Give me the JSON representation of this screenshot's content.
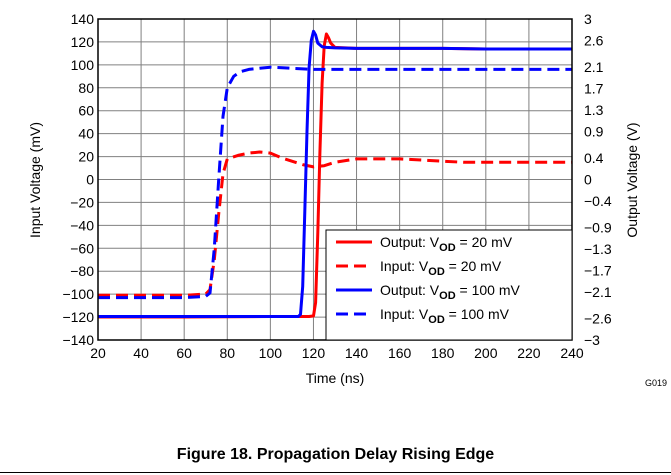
{
  "caption": "Figure 18. Propagation Delay Rising Edge",
  "figure_code": "G019",
  "chart_data": {
    "type": "line",
    "xlabel": "Time (ns)",
    "ylabel": "Input Voltage (mV)",
    "y2label": "Output Voltage (V)",
    "xlim": [
      20,
      240
    ],
    "ylim": [
      -140,
      140
    ],
    "y2lim": [
      -3,
      3
    ],
    "grid": true,
    "legend_position": "bottom-right",
    "x_ticks": [
      20,
      40,
      60,
      80,
      100,
      120,
      140,
      160,
      180,
      200,
      220,
      240
    ],
    "y_ticks": [
      140,
      120,
      100,
      80,
      60,
      40,
      20,
      0,
      -20,
      -40,
      -60,
      -80,
      -100,
      -120,
      -140
    ],
    "y_tick_labels": [
      "140",
      "120",
      "100",
      "80",
      "60",
      "40",
      "20",
      "0",
      "−20",
      "−40",
      "−60",
      "−80",
      "−100",
      "−120",
      "−140"
    ],
    "y2_ticks": [
      3,
      2.6,
      2.1,
      1.7,
      1.3,
      0.9,
      0.4,
      0,
      -0.4,
      -0.9,
      -1.3,
      -1.7,
      -2.1,
      -2.6,
      -3
    ],
    "y2_tick_labels": [
      "3",
      "2.6",
      "2.1",
      "1.7",
      "1.3",
      "0.9",
      "0.4",
      "0",
      "−0.4",
      "−0.9",
      "−1.3",
      "−1.7",
      "−2.1",
      "−2.6",
      "−3"
    ],
    "series": [
      {
        "label_main": "Output: V",
        "label_sub": "OD",
        "label_tail": " = 20 mV",
        "color": "#ff0000",
        "dash": "solid",
        "axis": "right",
        "x": [
          20,
          60,
          100,
          118,
          120,
          121,
          122,
          123,
          124,
          125,
          126,
          127,
          128,
          130,
          135,
          140,
          160,
          180,
          200,
          220,
          240
        ],
        "y": [
          -2.57,
          -2.57,
          -2.56,
          -2.56,
          -2.55,
          -2.3,
          -1.0,
          0.5,
          1.8,
          2.5,
          2.72,
          2.65,
          2.55,
          2.47,
          2.46,
          2.45,
          2.45,
          2.45,
          2.44,
          2.44,
          2.44
        ]
      },
      {
        "label_main": "Input: V",
        "label_sub": "OD",
        "label_tail": " = 20 mV",
        "color": "#ff0000",
        "dash": "dashed",
        "axis": "left",
        "x": [
          20,
          40,
          60,
          70,
          72,
          74,
          76,
          78,
          80,
          85,
          90,
          95,
          100,
          105,
          110,
          115,
          120,
          125,
          130,
          140,
          150,
          160,
          170,
          180,
          190,
          200,
          210,
          220,
          240
        ],
        "y": [
          -101,
          -101,
          -101,
          -100,
          -96,
          -70,
          -30,
          5,
          18,
          21,
          23,
          24,
          23,
          19,
          16,
          13,
          11,
          12,
          15,
          18,
          18,
          18,
          17,
          16,
          15,
          15,
          15,
          15,
          15
        ]
      },
      {
        "label_main": "Output: V",
        "label_sub": "OD",
        "label_tail": " = 100 mV",
        "color": "#0000ff",
        "dash": "solid",
        "axis": "right",
        "x": [
          20,
          60,
          100,
          113,
          114,
          115,
          116,
          117,
          118,
          119,
          120,
          121,
          122,
          124,
          126,
          130,
          140,
          160,
          180,
          200,
          220,
          240
        ],
        "y": [
          -2.56,
          -2.56,
          -2.56,
          -2.56,
          -2.52,
          -2.0,
          -0.6,
          0.9,
          2.1,
          2.6,
          2.77,
          2.7,
          2.55,
          2.48,
          2.47,
          2.46,
          2.45,
          2.45,
          2.45,
          2.44,
          2.44,
          2.44
        ]
      },
      {
        "label_main": "Input: V",
        "label_sub": "OD",
        "label_tail": " = 100 mV",
        "color": "#0000ff",
        "dash": "dashed",
        "axis": "left",
        "x": [
          20,
          40,
          60,
          70,
          72,
          74,
          76,
          78,
          80,
          83,
          86,
          90,
          95,
          100,
          110,
          120,
          140,
          160,
          180,
          200,
          220,
          240
        ],
        "y": [
          -103,
          -103,
          -103,
          -102,
          -99,
          -60,
          0,
          55,
          80,
          90,
          94,
          96,
          97,
          98,
          97,
          96,
          96,
          96,
          96,
          96,
          96,
          96
        ]
      }
    ]
  }
}
